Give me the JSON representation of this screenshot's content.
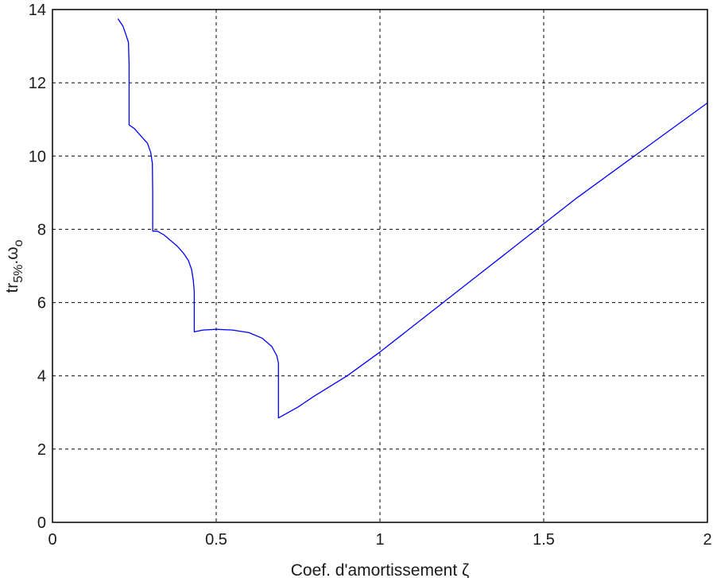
{
  "chart_data": {
    "type": "line",
    "title": "",
    "xlabel": "Coef. d'amortissement ζ",
    "ylabel": {
      "main": "tr",
      "sub1": "5%",
      "mid": ".ω",
      "sub2": "o"
    },
    "xlim": [
      0,
      2
    ],
    "ylim": [
      0,
      14
    ],
    "xticks": [
      "0",
      "0.5",
      "1",
      "1.5",
      "2"
    ],
    "yticks": [
      "0",
      "2",
      "4",
      "6",
      "8",
      "10",
      "12",
      "14"
    ],
    "xtick_values": [
      0,
      0.5,
      1,
      1.5,
      2
    ],
    "ytick_values": [
      0,
      2,
      4,
      6,
      8,
      10,
      12,
      14
    ],
    "grid": true,
    "line_color": "#0000ff",
    "series": [
      {
        "x": [
          0.2,
          0.215,
          0.225,
          0.232,
          0.234,
          0.234,
          0.25,
          0.27,
          0.29,
          0.3,
          0.305,
          0.306,
          0.306,
          0.32,
          0.34,
          0.36,
          0.38,
          0.4,
          0.415,
          0.425,
          0.43,
          0.433,
          0.433,
          0.46,
          0.5,
          0.55,
          0.6,
          0.64,
          0.67,
          0.685,
          0.69,
          0.69,
          0.75,
          0.8,
          0.9,
          1.0,
          1.1,
          1.2,
          1.3,
          1.4,
          1.5,
          1.6,
          1.7,
          1.8,
          1.9,
          2.0
        ],
        "y": [
          13.75,
          13.55,
          13.3,
          13.1,
          12.5,
          10.85,
          10.75,
          10.55,
          10.35,
          10.1,
          9.8,
          9.0,
          7.95,
          7.95,
          7.85,
          7.7,
          7.55,
          7.35,
          7.15,
          6.9,
          6.6,
          6.3,
          5.2,
          5.25,
          5.27,
          5.25,
          5.18,
          5.03,
          4.8,
          4.55,
          4.35,
          2.85,
          3.15,
          3.45,
          4.0,
          4.65,
          5.35,
          6.05,
          6.75,
          7.45,
          8.15,
          8.85,
          9.5,
          10.15,
          10.8,
          11.45
        ]
      }
    ]
  }
}
